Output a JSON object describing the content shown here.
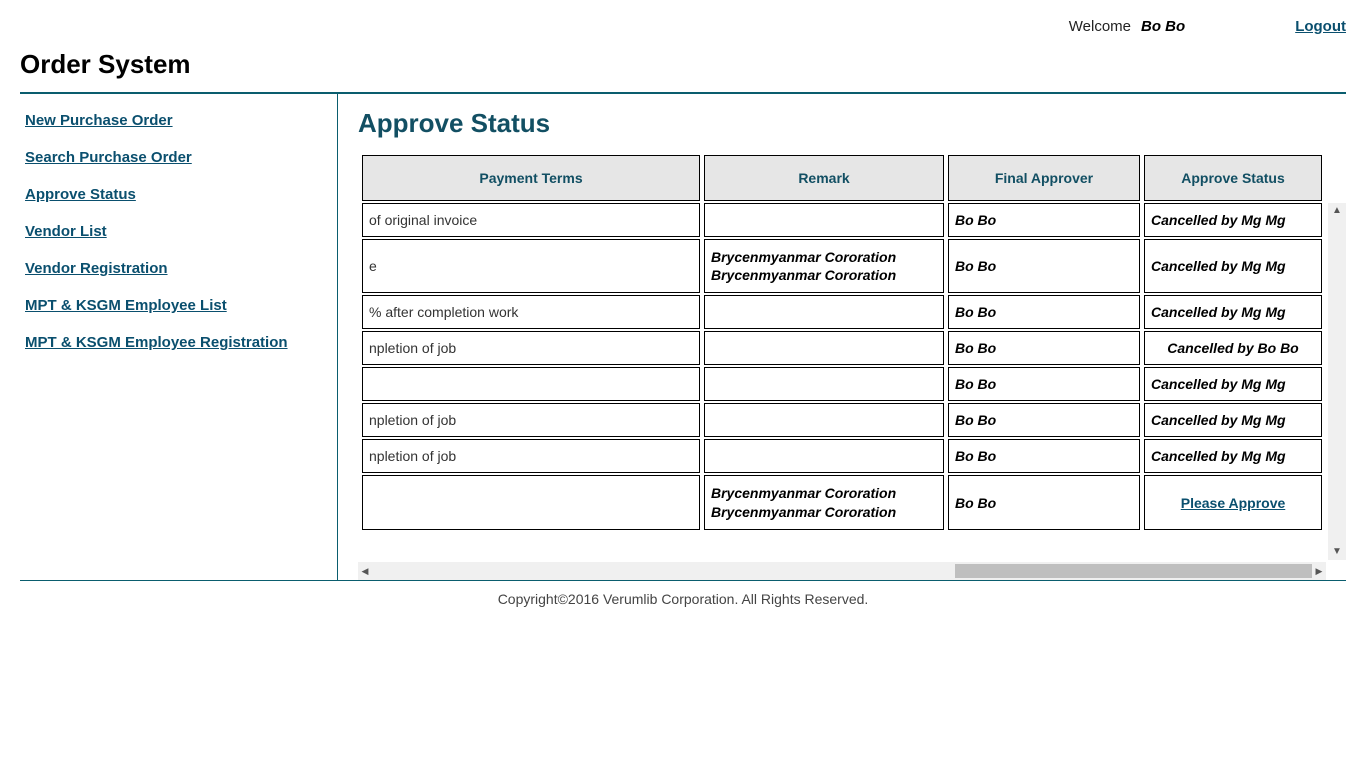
{
  "header": {
    "welcome_label": "Welcome",
    "username": "Bo Bo",
    "logout_label": "Logout",
    "app_title": "Order System"
  },
  "sidebar": {
    "items": [
      {
        "label": "New Purchase Order"
      },
      {
        "label": "Search Purchase Order"
      },
      {
        "label": "Approve Status"
      },
      {
        "label": "Vendor List"
      },
      {
        "label": "Vendor Registration"
      },
      {
        "label": "MPT & KSGM Employee List"
      },
      {
        "label": "MPT & KSGM Employee Registration"
      }
    ]
  },
  "main": {
    "heading": "Approve Status",
    "columns": [
      "Payment Terms",
      "Remark",
      "Final Approver",
      "Approve Status"
    ],
    "rows": [
      {
        "payment": "of original invoice",
        "remark": "",
        "approver": "Bo Bo",
        "status": "Cancelled by Mg Mg",
        "status_link": false,
        "status_center": false
      },
      {
        "payment": "e",
        "remark": "Brycenmyanmar Cororation\nBrycenmyanmar Cororation",
        "approver": "Bo Bo",
        "status": "Cancelled by Mg Mg",
        "status_link": false,
        "status_center": false
      },
      {
        "payment": "% after completion work",
        "remark": "",
        "approver": "Bo Bo",
        "status": "Cancelled by Mg Mg",
        "status_link": false,
        "status_center": false
      },
      {
        "payment": "npletion of job",
        "remark": "",
        "approver": "Bo Bo",
        "status": "Cancelled by Bo Bo",
        "status_link": false,
        "status_center": true
      },
      {
        "payment": "",
        "remark": "",
        "approver": "Bo Bo",
        "status": "Cancelled by Mg Mg",
        "status_link": false,
        "status_center": false
      },
      {
        "payment": "npletion of job",
        "remark": "",
        "approver": "Bo Bo",
        "status": "Cancelled by Mg Mg",
        "status_link": false,
        "status_center": false
      },
      {
        "payment": "npletion of job",
        "remark": "",
        "approver": "Bo Bo",
        "status": "Cancelled by Mg Mg",
        "status_link": false,
        "status_center": false
      },
      {
        "payment": "",
        "remark": "Brycenmyanmar Cororation\nBrycenmyanmar Cororation",
        "approver": "Bo Bo",
        "status": "Please Approve",
        "status_link": true,
        "status_center": true
      }
    ]
  },
  "footer": {
    "text": "Copyright©2016 Verumlib Corporation. All Rights Reserved."
  },
  "colors": {
    "accent": "#0a5d6e",
    "link": "#0a4f6e",
    "header_bg": "#e6e6e6"
  }
}
